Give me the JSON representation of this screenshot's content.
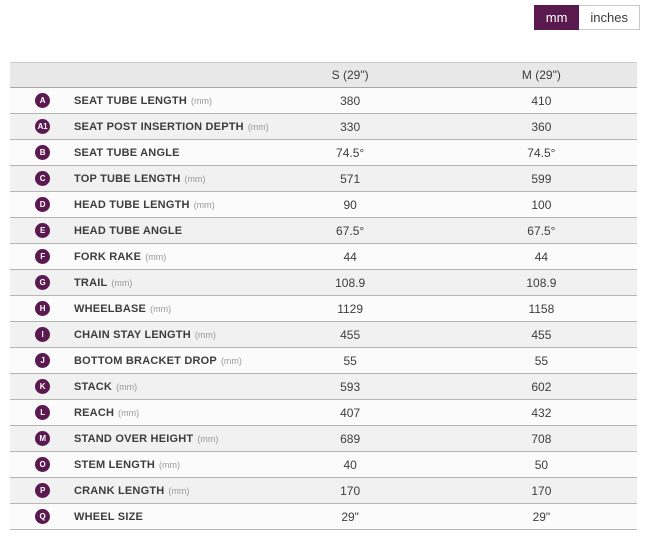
{
  "unit_toggle": {
    "mm_label": "mm",
    "inches_label": "inches",
    "selected": "mm"
  },
  "colors": {
    "brand_purple": "#5a1a50",
    "header_bg": "#e8e8e8",
    "row_even_bg": "#f1f1f1",
    "row_odd_bg": "#fbfbfb",
    "row_border": "#b5b5b5"
  },
  "table": {
    "col_label": "",
    "col_s": "S (29\")",
    "col_m": "M (29\")",
    "rows": [
      {
        "badge": "A",
        "label": "SEAT TUBE LENGTH",
        "unit": "(mm)",
        "s": "380",
        "m": "410"
      },
      {
        "badge": "A1",
        "label": "SEAT POST INSERTION DEPTH",
        "unit": "(mm)",
        "s": "330",
        "m": "360"
      },
      {
        "badge": "B",
        "label": "SEAT TUBE ANGLE",
        "unit": "",
        "s": "74.5°",
        "m": "74.5°"
      },
      {
        "badge": "C",
        "label": "TOP TUBE LENGTH",
        "unit": "(mm)",
        "s": "571",
        "m": "599"
      },
      {
        "badge": "D",
        "label": "HEAD TUBE LENGTH",
        "unit": "(mm)",
        "s": "90",
        "m": "100"
      },
      {
        "badge": "E",
        "label": "HEAD TUBE ANGLE",
        "unit": "",
        "s": "67.5°",
        "m": "67.5°"
      },
      {
        "badge": "F",
        "label": "FORK RAKE",
        "unit": "(mm)",
        "s": "44",
        "m": "44"
      },
      {
        "badge": "G",
        "label": "TRAIL",
        "unit": "(mm)",
        "s": "108.9",
        "m": "108.9"
      },
      {
        "badge": "H",
        "label": "WHEELBASE",
        "unit": "(mm)",
        "s": "1129",
        "m": "1158"
      },
      {
        "badge": "I",
        "label": "CHAIN STAY LENGTH",
        "unit": "(mm)",
        "s": "455",
        "m": "455"
      },
      {
        "badge": "J",
        "label": "BOTTOM BRACKET DROP",
        "unit": "(mm)",
        "s": "55",
        "m": "55"
      },
      {
        "badge": "K",
        "label": "STACK",
        "unit": "(mm)",
        "s": "593",
        "m": "602"
      },
      {
        "badge": "L",
        "label": "REACH",
        "unit": "(mm)",
        "s": "407",
        "m": "432"
      },
      {
        "badge": "M",
        "label": "STAND OVER HEIGHT",
        "unit": "(mm)",
        "s": "689",
        "m": "708"
      },
      {
        "badge": "O",
        "label": "STEM LENGTH",
        "unit": "(mm)",
        "s": "40",
        "m": "50"
      },
      {
        "badge": "P",
        "label": "CRANK LENGTH",
        "unit": "(mm)",
        "s": "170",
        "m": "170"
      },
      {
        "badge": "Q",
        "label": "WHEEL SIZE",
        "unit": "",
        "s": "29\"",
        "m": "29\""
      }
    ]
  }
}
